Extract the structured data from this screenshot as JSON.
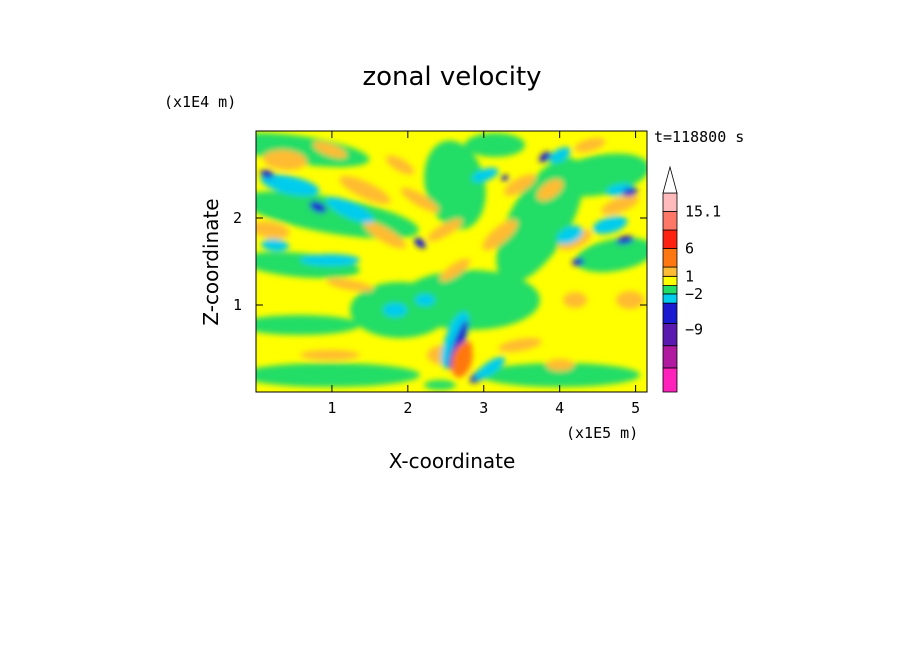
{
  "chart_data": {
    "type": "heatmap",
    "title": "zonal velocity",
    "xlabel": "X-coordinate",
    "ylabel": "Z-coordinate",
    "x_unit": "(x1E5 m)",
    "y_unit": "(x1E4 m)",
    "time_label": "t=118800 s",
    "xlim": [
      0,
      5.15
    ],
    "ylim": [
      0,
      3.0
    ],
    "x_ticks": [
      "1",
      "2",
      "3",
      "4",
      "5"
    ],
    "y_ticks": [
      "1",
      "2"
    ],
    "colorbar": {
      "levels": [
        {
          "color": "#ff22bb"
        },
        {
          "color": "#b01aa0"
        },
        {
          "color": "#5a1ab0"
        },
        {
          "color": "#1a1ad0"
        },
        {
          "color": "#00ccee"
        },
        {
          "color": "#22dd66"
        },
        {
          "color": "#ffff00"
        },
        {
          "color": "#ffbb33"
        },
        {
          "color": "#ff7711"
        },
        {
          "color": "#ff2211"
        },
        {
          "color": "#ff7766"
        },
        {
          "color": "#ffbbbb"
        }
      ],
      "labels": [
        "15.1",
        "6",
        "1",
        "−2",
        "−9"
      ],
      "overflow": "triangle-top"
    },
    "palette": {
      "yellow": "#ffff00",
      "green": "#22dd66",
      "cyan": "#00ccee",
      "blue": "#1a1ad0",
      "orange": "#ffbb33",
      "dark_orange": "#ff7711",
      "red": "#ff2211"
    }
  }
}
